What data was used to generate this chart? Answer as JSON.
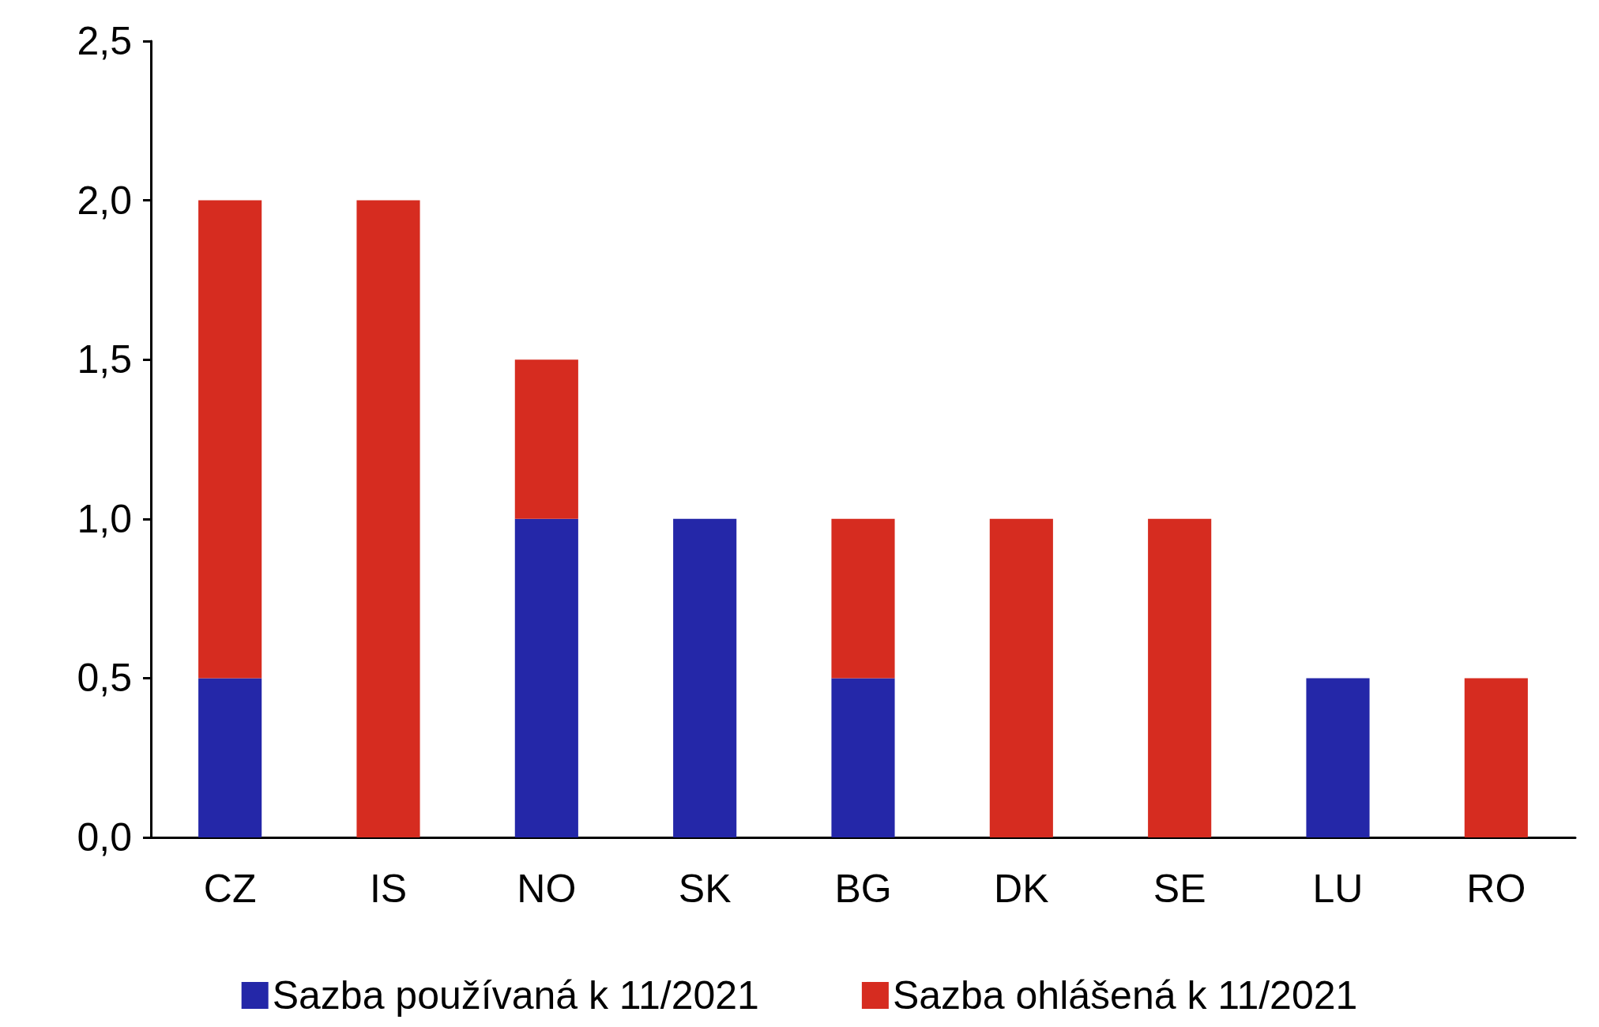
{
  "chart_data": {
    "type": "bar",
    "stacked": true,
    "categories": [
      "CZ",
      "IS",
      "NO",
      "SK",
      "BG",
      "DK",
      "SE",
      "LU",
      "RO"
    ],
    "series": [
      {
        "name": "Sazba používaná k 11/2021",
        "color": "#2427a8",
        "values": [
          0.5,
          null,
          1.0,
          1.0,
          0.5,
          null,
          null,
          0.5,
          null
        ]
      },
      {
        "name": "Sazba ohlášená k 11/2021",
        "color": "#d62c20",
        "values": [
          1.5,
          2.0,
          0.5,
          null,
          0.5,
          1.0,
          1.0,
          null,
          0.5
        ]
      }
    ],
    "ylim": [
      0,
      2.5
    ],
    "yticks": [
      {
        "value": 0,
        "label": "0,0"
      },
      {
        "value": 0.5,
        "label": "0,5"
      },
      {
        "value": 1,
        "label": "1,0"
      },
      {
        "value": 1.5,
        "label": "1,5"
      },
      {
        "value": 2,
        "label": "2,0"
      },
      {
        "value": 2.5,
        "label": "2,5"
      }
    ],
    "grid": false,
    "legend": "bottom"
  }
}
